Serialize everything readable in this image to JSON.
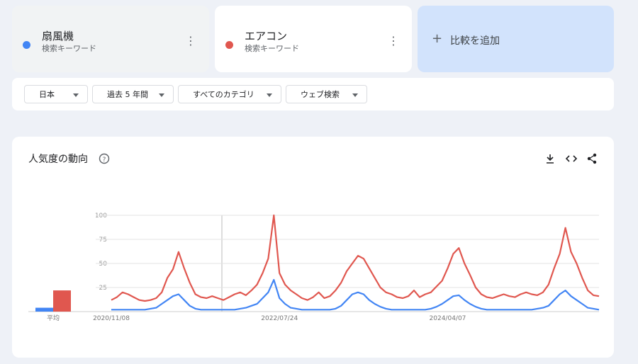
{
  "cards": [
    {
      "kind": "検索キーワード"
    },
    {
      "kind": "検索キーワード"
    }
  ],
  "add_compare": "比較を追加",
  "filters": [
    "日本",
    "過去 5 年間",
    "すべてのカテゴリ",
    "ウェブ検索"
  ],
  "section_title": "人気度の動向",
  "chart_data": {
    "type": "line",
    "average_label": "平均",
    "categories": [
      "2020/11/08",
      null,
      null,
      null,
      null,
      null,
      null,
      null,
      null,
      null,
      null,
      null,
      null,
      null,
      null,
      null,
      null,
      null,
      null,
      null,
      null,
      null,
      null,
      null,
      null,
      null,
      null,
      null,
      null,
      null,
      "2022/07/24",
      null,
      null,
      null,
      null,
      null,
      null,
      null,
      null,
      null,
      null,
      null,
      null,
      null,
      null,
      null,
      null,
      null,
      null,
      null,
      null,
      null,
      null,
      null,
      null,
      null,
      null,
      null,
      null,
      null,
      "2024/04/07",
      null,
      null,
      null,
      null,
      null,
      null,
      null,
      null,
      null,
      null,
      null,
      null,
      null,
      null,
      null,
      null,
      null,
      null,
      null,
      null,
      null,
      null,
      null,
      null,
      null,
      null,
      null
    ],
    "series": [
      {
        "name": "扇風機",
        "color": "#4285f4",
        "average": 4,
        "values": [
          2,
          2,
          2,
          2,
          2,
          2,
          2,
          3,
          4,
          8,
          12,
          16,
          18,
          12,
          6,
          3,
          2,
          2,
          2,
          2,
          2,
          2,
          2,
          3,
          4,
          6,
          8,
          14,
          20,
          33,
          14,
          8,
          4,
          3,
          2,
          2,
          2,
          2,
          2,
          2,
          3,
          6,
          12,
          18,
          20,
          18,
          12,
          8,
          5,
          3,
          2,
          2,
          2,
          2,
          2,
          2,
          2,
          3,
          5,
          8,
          12,
          16,
          17,
          12,
          8,
          5,
          3,
          2,
          2,
          2,
          2,
          2,
          2,
          2,
          2,
          2,
          3,
          4,
          6,
          12,
          18,
          22,
          16,
          12,
          8,
          4,
          3,
          2
        ]
      },
      {
        "name": "エアコン",
        "color": "#e0574f",
        "average": 22,
        "values": [
          12,
          15,
          20,
          18,
          15,
          12,
          11,
          12,
          14,
          20,
          35,
          44,
          62,
          45,
          30,
          18,
          15,
          14,
          16,
          14,
          12,
          15,
          18,
          20,
          17,
          22,
          28,
          40,
          55,
          100,
          40,
          28,
          22,
          18,
          14,
          12,
          15,
          20,
          14,
          16,
          22,
          30,
          42,
          50,
          58,
          55,
          45,
          35,
          25,
          20,
          18,
          15,
          14,
          16,
          22,
          15,
          18,
          20,
          26,
          32,
          45,
          60,
          66,
          50,
          38,
          25,
          18,
          15,
          14,
          16,
          18,
          16,
          15,
          18,
          20,
          18,
          17,
          20,
          28,
          45,
          60,
          87,
          62,
          50,
          35,
          22,
          17,
          16
        ]
      }
    ],
    "ylim": [
      0,
      100
    ],
    "yticks": [
      25,
      50,
      75,
      100
    ],
    "grid": true
  }
}
